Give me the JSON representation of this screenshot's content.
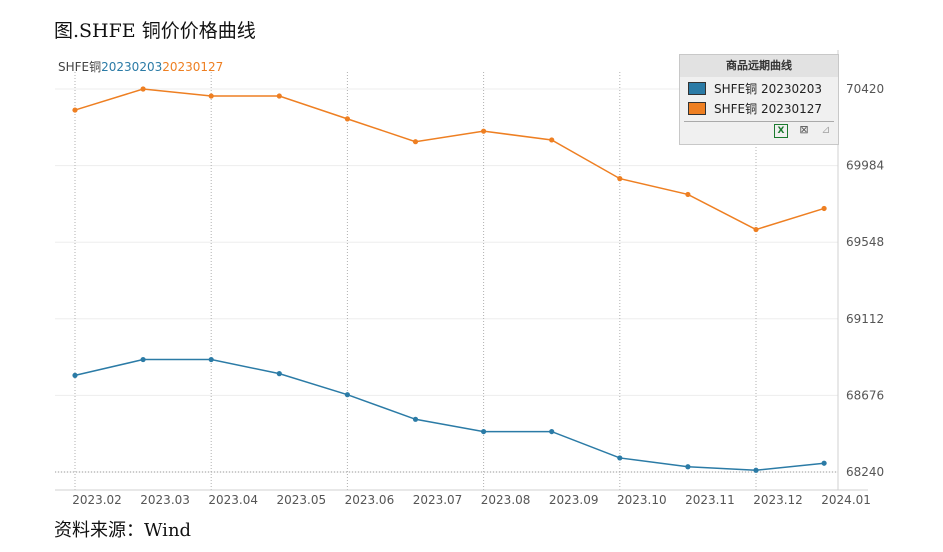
{
  "title": "图.SHFE 铜价价格曲线",
  "source": "资料来源：Wind",
  "series_caption": {
    "base": "SHFE铜",
    "s1": "20230203",
    "s2": "20230127"
  },
  "legend": {
    "title": "商品远期曲线",
    "items": [
      {
        "label": "SHFE铜 20230203",
        "color": "#2b7ba6"
      },
      {
        "label": "SHFE铜 20230127",
        "color": "#ee7f22"
      }
    ],
    "tools": [
      "excel-icon",
      "chart-edit-icon",
      "chart-disabled-icon"
    ]
  },
  "chart_data": {
    "type": "line",
    "categories": [
      "2023.02",
      "2023.03",
      "2023.04",
      "2023.05",
      "2023.06",
      "2023.07",
      "2023.08",
      "2023.09",
      "2023.10",
      "2023.11",
      "2023.12",
      "2024.01"
    ],
    "series": [
      {
        "name": "SHFE铜 20230203",
        "color": "#2b7ba6",
        "x": [
          "2023.02",
          "2023.03",
          "2023.04",
          "2023.05",
          "2023.06",
          "2023.07",
          "2023.08",
          "2023.09",
          "2023.10",
          "2023.11",
          "2023.12",
          "2024.01"
        ],
        "values": [
          68790,
          68880,
          68880,
          68800,
          68680,
          68540,
          68470,
          68470,
          68320,
          68270,
          68250,
          68290
        ]
      },
      {
        "name": "SHFE铜 20230127",
        "color": "#ee7f22",
        "x": [
          "2023.02",
          "2023.03",
          "2023.04",
          "2023.05",
          "2023.06",
          "2023.07",
          "2023.08",
          "2023.09",
          "2023.10",
          "2023.11",
          "2023.12",
          "2024.01"
        ],
        "values": [
          70300,
          70420,
          70380,
          70380,
          70250,
          70120,
          70180,
          70130,
          69910,
          69820,
          69620,
          69740
        ]
      }
    ],
    "y_ticks": [
      68240,
      68676,
      69112,
      69548,
      69984,
      70420
    ],
    "ylim": [
      68240,
      70420
    ],
    "grid": true,
    "legend_position": "top-right"
  }
}
